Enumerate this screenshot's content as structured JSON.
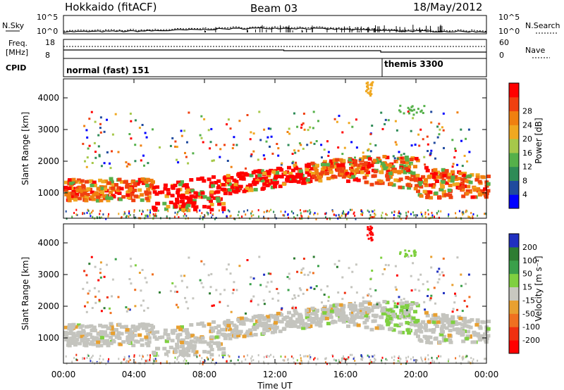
{
  "header": {
    "title": "Hokkaido (fitACF)",
    "beam": "Beam 03",
    "date": "18/May/2012"
  },
  "noise_panel": {
    "left_label": "N.Sky",
    "right_label": "N.Search",
    "left_ticks": [
      "10^5",
      "10^0"
    ],
    "right_ticks": [
      "10^5",
      "10^0"
    ]
  },
  "freq_panel": {
    "left_label_1": "Freq.",
    "left_label_2": "[MHz]",
    "right_label": "Nave",
    "left_ticks": [
      "18",
      "8"
    ],
    "right_ticks": [
      "60",
      "0"
    ]
  },
  "cpid_panel": {
    "label": "CPID",
    "modes": [
      {
        "name": "normal (fast) 151",
        "start_hour": 0
      },
      {
        "name": "themis 3300",
        "start_hour": 18
      }
    ]
  },
  "colors": {
    "power": [
      "#0000ff",
      "#204a9e",
      "#2e8b57",
      "#55b04a",
      "#a6c84a",
      "#f0a820",
      "#f08010",
      "#f04010",
      "#ff0000"
    ],
    "velocity": [
      "#2030c0",
      "#2e7d32",
      "#3aa04a",
      "#7fd040",
      "#c8c8c0",
      "#e8a030",
      "#f07020",
      "#f03010",
      "#ff0000"
    ]
  },
  "chart_data": [
    {
      "type": "heatmap",
      "name": "power",
      "xlabel": "",
      "ylabel": "Slant Range [km]",
      "xlim": [
        0,
        24
      ],
      "ylim": [
        200,
        4600
      ],
      "yticks": [
        "1000",
        "2000",
        "3000",
        "4000"
      ],
      "colorbar_label": "Power [dB]",
      "colorbar_ticks": [
        "4",
        "8",
        "12",
        "16",
        "20",
        "24",
        "28"
      ]
    },
    {
      "type": "heatmap",
      "name": "velocity",
      "xlabel": "Time UT",
      "ylabel": "Slant Range [km]",
      "xlim": [
        0,
        24
      ],
      "ylim": [
        200,
        4600
      ],
      "xticks": [
        "00:00",
        "04:00",
        "08:00",
        "12:00",
        "16:00",
        "20:00",
        "00:00"
      ],
      "yticks": [
        "1000",
        "2000",
        "3000",
        "4000"
      ],
      "colorbar_label": "Velocity [m s⁻¹]",
      "colorbar_ticks": [
        "200",
        "100",
        "50",
        "15",
        "-15",
        "-50",
        "-100",
        "-200"
      ]
    }
  ]
}
